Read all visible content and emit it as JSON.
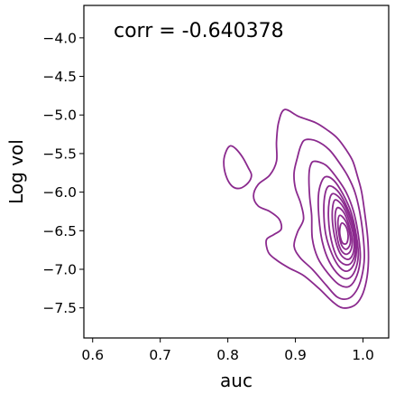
{
  "chart_data": {
    "type": "kde-contour",
    "title": "",
    "annotation": "corr = -0.640378",
    "xlabel": "auc",
    "ylabel": "Log vol",
    "xlim": [
      0.587,
      1.038
    ],
    "ylim": [
      -7.89,
      -3.58
    ],
    "xticks": [
      {
        "value": 0.6,
        "label": "0.6"
      },
      {
        "value": 0.7,
        "label": "0.7"
      },
      {
        "value": 0.8,
        "label": "0.8"
      },
      {
        "value": 0.9,
        "label": "0.9"
      },
      {
        "value": 1.0,
        "label": "1.0"
      }
    ],
    "yticks": [
      {
        "value": -4.0,
        "label": "−4.0"
      },
      {
        "value": -4.5,
        "label": "−4.5"
      },
      {
        "value": -5.0,
        "label": "−5.0"
      },
      {
        "value": -5.5,
        "label": "−5.5"
      },
      {
        "value": -6.0,
        "label": "−6.0"
      },
      {
        "value": -6.5,
        "label": "−6.5"
      },
      {
        "value": -7.0,
        "label": "−7.0"
      },
      {
        "value": -7.5,
        "label": "−7.5"
      }
    ],
    "grid": false,
    "legend": "none",
    "color": "#8b2a8e",
    "contours": [
      {
        "level": 1,
        "paths": [
          [
            [
              0.884,
              -4.93
            ],
            [
              0.905,
              -5.02
            ],
            [
              0.93,
              -5.1
            ],
            [
              0.948,
              -5.2
            ],
            [
              0.962,
              -5.3
            ],
            [
              0.975,
              -5.45
            ],
            [
              0.985,
              -5.6
            ],
            [
              0.992,
              -5.8
            ],
            [
              0.998,
              -6.0
            ],
            [
              1.003,
              -6.3
            ],
            [
              1.007,
              -6.6
            ],
            [
              1.008,
              -6.9
            ],
            [
              1.005,
              -7.15
            ],
            [
              0.998,
              -7.35
            ],
            [
              0.987,
              -7.47
            ],
            [
              0.97,
              -7.5
            ],
            [
              0.955,
              -7.42
            ],
            [
              0.935,
              -7.25
            ],
            [
              0.912,
              -7.08
            ],
            [
              0.89,
              -6.98
            ],
            [
              0.872,
              -6.88
            ],
            [
              0.86,
              -6.78
            ],
            [
              0.857,
              -6.62
            ],
            [
              0.868,
              -6.55
            ],
            [
              0.879,
              -6.48
            ],
            [
              0.876,
              -6.35
            ],
            [
              0.862,
              -6.25
            ],
            [
              0.845,
              -6.18
            ],
            [
              0.838,
              -6.05
            ],
            [
              0.845,
              -5.9
            ],
            [
              0.862,
              -5.78
            ],
            [
              0.872,
              -5.6
            ],
            [
              0.872,
              -5.35
            ],
            [
              0.875,
              -5.1
            ],
            [
              0.884,
              -4.93
            ]
          ],
          [
            [
              0.804,
              -5.4
            ],
            [
              0.812,
              -5.44
            ],
            [
              0.822,
              -5.55
            ],
            [
              0.83,
              -5.68
            ],
            [
              0.835,
              -5.78
            ],
            [
              0.83,
              -5.88
            ],
            [
              0.818,
              -5.95
            ],
            [
              0.806,
              -5.92
            ],
            [
              0.797,
              -5.78
            ],
            [
              0.794,
              -5.6
            ],
            [
              0.798,
              -5.46
            ],
            [
              0.804,
              -5.4
            ]
          ]
        ]
      },
      {
        "level": 2,
        "paths": [
          [
            [
              0.915,
              -5.32
            ],
            [
              0.932,
              -5.34
            ],
            [
              0.95,
              -5.45
            ],
            [
              0.965,
              -5.62
            ],
            [
              0.978,
              -5.8
            ],
            [
              0.988,
              -6.0
            ],
            [
              0.995,
              -6.25
            ],
            [
              1.0,
              -6.55
            ],
            [
              1.002,
              -6.85
            ],
            [
              0.998,
              -7.1
            ],
            [
              0.99,
              -7.28
            ],
            [
              0.978,
              -7.38
            ],
            [
              0.962,
              -7.36
            ],
            [
              0.945,
              -7.2
            ],
            [
              0.925,
              -7.0
            ],
            [
              0.907,
              -6.85
            ],
            [
              0.898,
              -6.7
            ],
            [
              0.903,
              -6.52
            ],
            [
              0.912,
              -6.35
            ],
            [
              0.908,
              -6.15
            ],
            [
              0.9,
              -5.95
            ],
            [
              0.898,
              -5.75
            ],
            [
              0.903,
              -5.55
            ],
            [
              0.908,
              -5.4
            ],
            [
              0.915,
              -5.32
            ]
          ]
        ]
      },
      {
        "level": 3,
        "paths": [
          [
            [
              0.928,
              -5.6
            ],
            [
              0.945,
              -5.65
            ],
            [
              0.96,
              -5.8
            ],
            [
              0.975,
              -6.0
            ],
            [
              0.986,
              -6.25
            ],
            [
              0.993,
              -6.55
            ],
            [
              0.996,
              -6.85
            ],
            [
              0.991,
              -7.08
            ],
            [
              0.98,
              -7.22
            ],
            [
              0.965,
              -7.2
            ],
            [
              0.948,
              -7.05
            ],
            [
              0.933,
              -6.85
            ],
            [
              0.925,
              -6.6
            ],
            [
              0.924,
              -6.3
            ],
            [
              0.921,
              -6.05
            ],
            [
              0.92,
              -5.8
            ],
            [
              0.922,
              -5.66
            ],
            [
              0.928,
              -5.6
            ]
          ]
        ]
      },
      {
        "level": 4,
        "paths": [
          [
            [
              0.945,
              -5.8
            ],
            [
              0.957,
              -5.85
            ],
            [
              0.97,
              -6.02
            ],
            [
              0.982,
              -6.25
            ],
            [
              0.99,
              -6.55
            ],
            [
              0.993,
              -6.82
            ],
            [
              0.988,
              -7.02
            ],
            [
              0.978,
              -7.12
            ],
            [
              0.965,
              -7.08
            ],
            [
              0.95,
              -6.9
            ],
            [
              0.94,
              -6.65
            ],
            [
              0.935,
              -6.35
            ],
            [
              0.934,
              -6.05
            ],
            [
              0.938,
              -5.88
            ],
            [
              0.945,
              -5.8
            ]
          ]
        ]
      },
      {
        "level": 5,
        "paths": [
          [
            [
              0.95,
              -5.92
            ],
            [
              0.962,
              -5.98
            ],
            [
              0.974,
              -6.15
            ],
            [
              0.984,
              -6.38
            ],
            [
              0.99,
              -6.65
            ],
            [
              0.988,
              -6.9
            ],
            [
              0.978,
              -7.02
            ],
            [
              0.966,
              -6.98
            ],
            [
              0.954,
              -6.8
            ],
            [
              0.945,
              -6.55
            ],
            [
              0.942,
              -6.25
            ],
            [
              0.944,
              -6.02
            ],
            [
              0.95,
              -5.92
            ]
          ]
        ]
      },
      {
        "level": 6,
        "paths": [
          [
            [
              0.955,
              -6.02
            ],
            [
              0.966,
              -6.08
            ],
            [
              0.977,
              -6.25
            ],
            [
              0.986,
              -6.48
            ],
            [
              0.989,
              -6.72
            ],
            [
              0.984,
              -6.9
            ],
            [
              0.974,
              -6.94
            ],
            [
              0.962,
              -6.85
            ],
            [
              0.953,
              -6.62
            ],
            [
              0.949,
              -6.35
            ],
            [
              0.95,
              -6.12
            ],
            [
              0.955,
              -6.02
            ]
          ]
        ]
      },
      {
        "level": 7,
        "paths": [
          [
            [
              0.959,
              -6.1
            ],
            [
              0.969,
              -6.17
            ],
            [
              0.979,
              -6.35
            ],
            [
              0.986,
              -6.57
            ],
            [
              0.986,
              -6.77
            ],
            [
              0.979,
              -6.87
            ],
            [
              0.968,
              -6.82
            ],
            [
              0.96,
              -6.65
            ],
            [
              0.955,
              -6.4
            ],
            [
              0.955,
              -6.2
            ],
            [
              0.959,
              -6.1
            ]
          ]
        ]
      },
      {
        "level": 8,
        "paths": [
          [
            [
              0.963,
              -6.2
            ],
            [
              0.972,
              -6.27
            ],
            [
              0.98,
              -6.45
            ],
            [
              0.984,
              -6.63
            ],
            [
              0.981,
              -6.77
            ],
            [
              0.973,
              -6.8
            ],
            [
              0.965,
              -6.7
            ],
            [
              0.96,
              -6.48
            ],
            [
              0.959,
              -6.28
            ],
            [
              0.963,
              -6.2
            ]
          ]
        ]
      },
      {
        "level": 9,
        "paths": [
          [
            [
              0.966,
              -6.3
            ],
            [
              0.974,
              -6.37
            ],
            [
              0.98,
              -6.52
            ],
            [
              0.981,
              -6.67
            ],
            [
              0.975,
              -6.74
            ],
            [
              0.968,
              -6.68
            ],
            [
              0.964,
              -6.52
            ],
            [
              0.963,
              -6.37
            ],
            [
              0.966,
              -6.3
            ]
          ]
        ]
      },
      {
        "level": 10,
        "paths": [
          [
            [
              0.969,
              -6.4
            ],
            [
              0.975,
              -6.45
            ],
            [
              0.978,
              -6.56
            ],
            [
              0.976,
              -6.66
            ],
            [
              0.97,
              -6.66
            ],
            [
              0.966,
              -6.56
            ],
            [
              0.966,
              -6.46
            ],
            [
              0.969,
              -6.4
            ]
          ]
        ]
      }
    ]
  }
}
